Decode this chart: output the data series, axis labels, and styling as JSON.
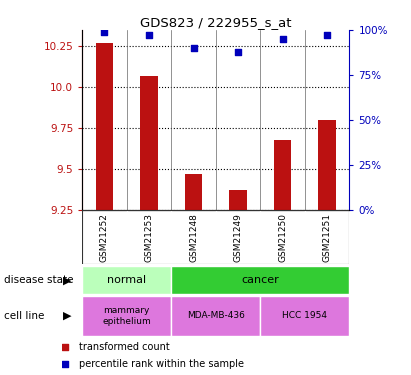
{
  "title": "GDS823 / 222955_s_at",
  "samples": [
    "GSM21252",
    "GSM21253",
    "GSM21248",
    "GSM21249",
    "GSM21250",
    "GSM21251"
  ],
  "transformed_counts": [
    10.27,
    10.07,
    9.47,
    9.37,
    9.68,
    9.8
  ],
  "percentile_ranks": [
    99,
    97,
    90,
    88,
    95,
    97
  ],
  "ylim_left": [
    9.25,
    10.35
  ],
  "ylim_right": [
    0,
    100
  ],
  "yticks_left": [
    9.25,
    9.5,
    9.75,
    10.0,
    10.25
  ],
  "yticks_right": [
    0,
    25,
    50,
    75,
    100
  ],
  "ytick_labels_right": [
    "0%",
    "25%",
    "50%",
    "75%",
    "100%"
  ],
  "bar_color": "#bb1111",
  "dot_color": "#0000bb",
  "bar_bottom": 9.25,
  "disease_color_normal": "#bbffbb",
  "disease_color_cancer": "#33cc33",
  "cell_line_color": "#dd77dd",
  "dot_size": 25,
  "bar_width": 0.4,
  "background_color": "#ffffff",
  "legend_red_label": "transformed count",
  "legend_blue_label": "percentile rank within the sample",
  "sample_bg_color": "#cccccc",
  "sample_border_color": "#999999"
}
